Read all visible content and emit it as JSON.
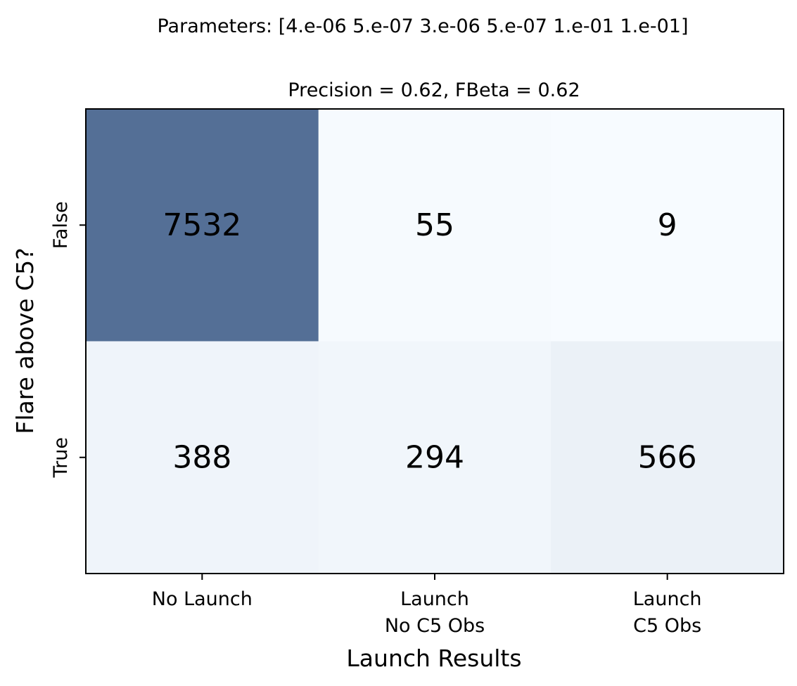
{
  "figure": {
    "suptitle": "Parameters: [4.e-06 5.e-07 3.e-06 5.e-07 1.e-01 1.e-01]"
  },
  "chart_data": {
    "type": "heatmap",
    "title": "Precision = 0.62, FBeta = 0.62",
    "xlabel": "Launch Results",
    "ylabel": "Flare above C5?",
    "x_categories": [
      "No Launch",
      "Launch\nNo C5 Obs",
      "Launch\nC5 Obs"
    ],
    "y_categories": [
      "False",
      "True"
    ],
    "values": [
      [
        7532,
        55,
        9
      ],
      [
        388,
        294,
        566
      ]
    ],
    "colormap": {
      "low": "#f7fbff",
      "high": "#546f96"
    },
    "grid": false,
    "colorbar": false
  }
}
